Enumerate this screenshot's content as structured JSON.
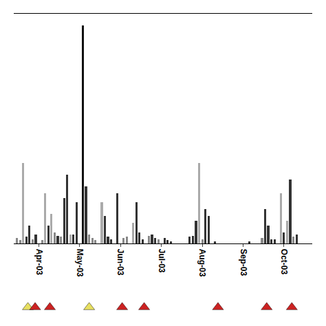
{
  "chart_data": {
    "type": "bar",
    "xlim": [
      0,
      95
    ],
    "xticks": [
      {
        "value": 8,
        "label": "Apr-03"
      },
      {
        "value": 21,
        "label": "May-03"
      },
      {
        "value": 34,
        "label": "Jun-03"
      },
      {
        "value": 47,
        "label": "Jul-03"
      },
      {
        "value": 60,
        "label": "Aug-03"
      },
      {
        "value": 73,
        "label": "Sep-03"
      },
      {
        "value": 86,
        "label": "Oct-03"
      }
    ],
    "ylim": [
      0,
      100
    ],
    "grid": false,
    "tick_labels": "x",
    "series": [
      {
        "type": "bar",
        "x": [
          1,
          2,
          3,
          4,
          5,
          6,
          7,
          9,
          10,
          11,
          12,
          13,
          14,
          15,
          16,
          17,
          18,
          19,
          20,
          22,
          23,
          24,
          25,
          26,
          28,
          29,
          30,
          31,
          33,
          35,
          36,
          38,
          39,
          40,
          41,
          43,
          44,
          45,
          46,
          48,
          49,
          50,
          56,
          57,
          58,
          59,
          60,
          61,
          62,
          64,
          75,
          79,
          80,
          81,
          82,
          83,
          85,
          86,
          87,
          88,
          89,
          90
        ],
        "values": [
          2.5,
          1.5,
          35,
          3,
          8,
          2,
          4,
          1.5,
          22,
          8,
          13,
          5,
          3.5,
          3,
          20,
          30,
          4,
          4,
          18,
          95,
          25,
          4,
          2.5,
          1.5,
          18,
          12,
          3,
          2,
          22,
          2.5,
          3,
          9,
          18,
          5,
          2,
          3.5,
          4,
          2.5,
          2,
          2.5,
          1.5,
          1,
          3,
          3.5,
          10,
          35,
          2,
          15,
          12,
          1,
          1,
          2.5,
          15,
          8,
          2,
          2,
          22,
          5,
          10,
          28,
          3,
          4
        ],
        "colors": [
          "#888888",
          "#888888",
          "#aaaaaa",
          "#333333",
          "#333333",
          "#888888",
          "#333333",
          "#888888",
          "#aaaaaa",
          "#333333",
          "#aaaaaa",
          "#888888",
          "#333333",
          "#888888",
          "#333333",
          "#333333",
          "#aaaaaa",
          "#333333",
          "#333333",
          "#111111",
          "#333333",
          "#888888",
          "#888888",
          "#888888",
          "#aaaaaa",
          "#333333",
          "#333333",
          "#333333",
          "#333333",
          "#888888",
          "#888888",
          "#aaaaaa",
          "#333333",
          "#333333",
          "#333333",
          "#888888",
          "#333333",
          "#333333",
          "#888888",
          "#333333",
          "#333333",
          "#333333",
          "#333333",
          "#333333",
          "#333333",
          "#aaaaaa",
          "#888888",
          "#333333",
          "#333333",
          "#333333",
          "#333333",
          "#888888",
          "#333333",
          "#333333",
          "#333333",
          "#333333",
          "#aaaaaa",
          "#333333",
          "#aaaaaa",
          "#333333",
          "#888888",
          "#333333"
        ]
      },
      {
        "type": "scatter",
        "marker": "triangle-up",
        "x": [
          4.5,
          6.8,
          11.5,
          24.0,
          34.5,
          41.5,
          65.0,
          80.5,
          88.5
        ],
        "colors": [
          "#e8e060",
          "#cc2222",
          "#cc2222",
          "#e8e060",
          "#cc2222",
          "#cc2222",
          "#cc2222",
          "#cc2222",
          "#cc2222"
        ]
      }
    ]
  }
}
